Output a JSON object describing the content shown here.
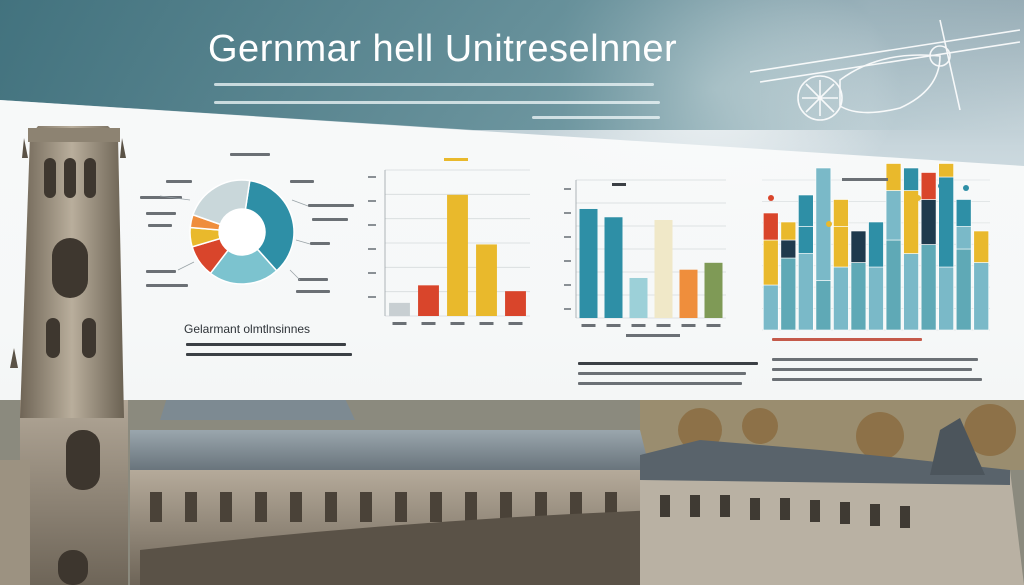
{
  "page": {
    "title": "Gernmar hell Unitreselnner",
    "donut_title": "Gelarmant olmtlnsinnes",
    "colors": {
      "teal": "#2e8fa6",
      "yellow": "#e9b92c",
      "red": "#d9452b",
      "orange": "#ef8e3c",
      "green": "#7f9a56",
      "navy": "#1f3a4d",
      "sky": "#7ab9c8"
    },
    "icons": [
      "compass-sketch-icon"
    ]
  },
  "chart_data": [
    {
      "type": "pie",
      "title": "",
      "values": [
        36,
        22,
        10,
        6,
        4,
        22
      ],
      "colors": [
        "#2e8fa6",
        "#7cc3cf",
        "#d9452b",
        "#e9b92c",
        "#ef8e3c",
        "#c9d7da"
      ]
    },
    {
      "type": "bar",
      "title": "",
      "values": [
        9,
        21,
        83,
        49,
        17
      ],
      "colors": [
        "#c8cfd2",
        "#d9452b",
        "#e9b92c",
        "#e9b92c",
        "#d9452b"
      ],
      "ylim": [
        0,
        100
      ]
    },
    {
      "type": "bar",
      "title": "",
      "values": [
        79,
        73,
        29,
        71,
        35,
        40
      ],
      "colors": [
        "#2e8fa6",
        "#2e8fa6",
        "#9cd0d8",
        "#f0e8c8",
        "#ef8e3c",
        "#7f9a56"
      ],
      "ylim": [
        0,
        100
      ]
    },
    {
      "type": "bar",
      "title": "",
      "series": [
        {
          "values": [
            20,
            32,
            34,
            22,
            28,
            30,
            28,
            40,
            34,
            38,
            28,
            36,
            30
          ]
        },
        {
          "values": [
            20,
            8,
            12,
            50,
            18,
            14,
            20,
            22,
            28,
            20,
            40,
            10,
            14
          ]
        },
        {
          "values": [
            12,
            8,
            14,
            0,
            12,
            0,
            0,
            12,
            10,
            12,
            6,
            12,
            0
          ]
        }
      ],
      "colors": [
        "#5fa9b6",
        "#e9b92c",
        "#d9452b",
        "#1f3a4d",
        "#2e8fa6"
      ],
      "ylim": [
        0,
        100
      ]
    }
  ]
}
